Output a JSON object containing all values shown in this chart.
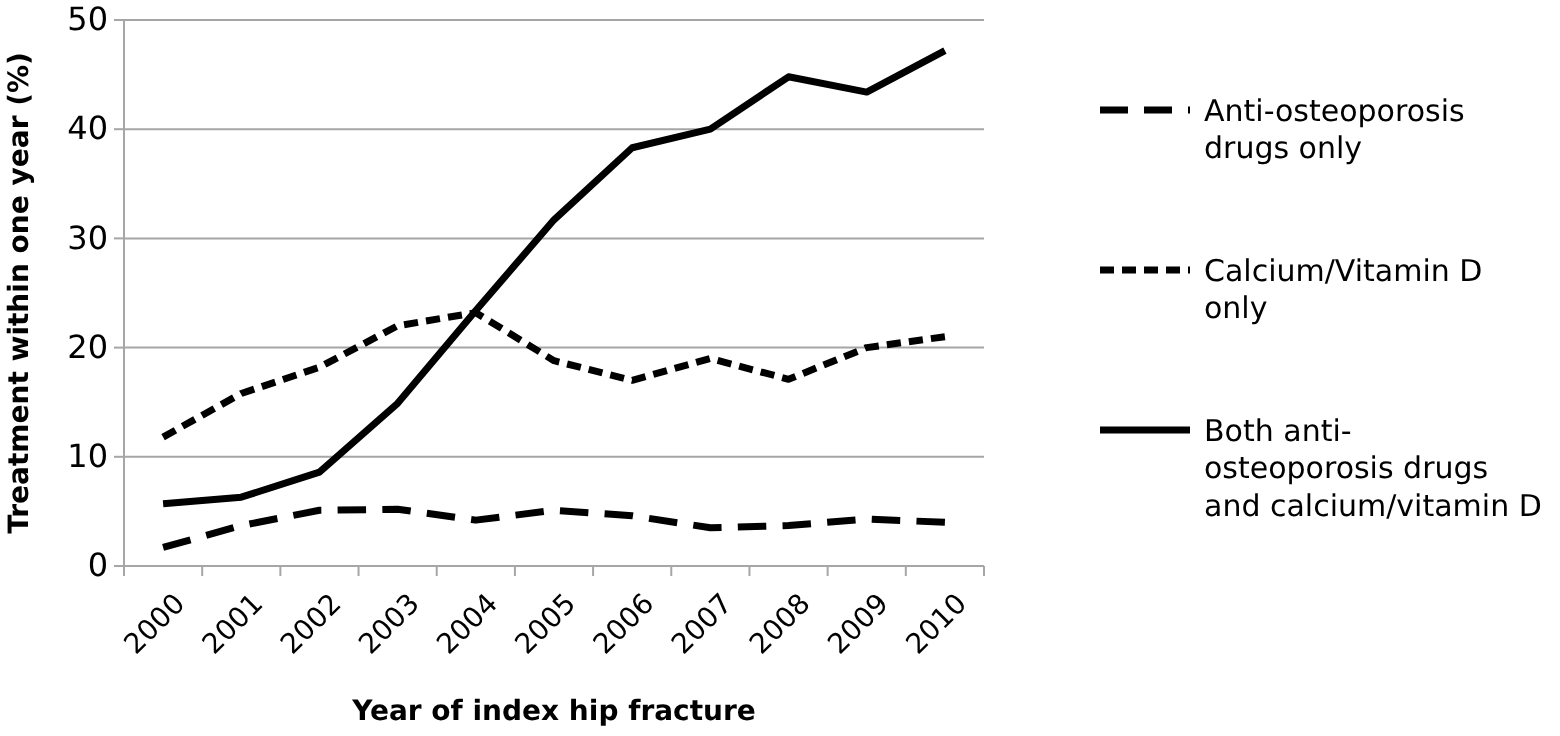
{
  "chart_data": {
    "type": "line",
    "xlabel": "Year of index hip fracture",
    "ylabel": "Treatment within one year (%)",
    "categories": [
      "2000",
      "2001",
      "2002",
      "2003",
      "2004",
      "2005",
      "2006",
      "2007",
      "2008",
      "2009",
      "2010"
    ],
    "series": [
      {
        "name": "Anti-osteoporosis drugs only",
        "color": "#000000",
        "line_style": "dashed",
        "values": [
          1.7,
          3.7,
          5.1,
          5.2,
          4.2,
          5.1,
          4.6,
          3.5,
          3.7,
          4.3,
          4.0
        ]
      },
      {
        "name": "Calcium/Vitamin D only",
        "color": "#000000",
        "line_style": "dotted",
        "values": [
          11.8,
          15.8,
          18.2,
          22.0,
          23.2,
          18.8,
          17.0,
          19.0,
          17.1,
          20.0,
          21.0
        ]
      },
      {
        "name": "Both anti-osteoporosis drugs and calcium/vitamin D",
        "color": "#000000",
        "line_style": "solid",
        "values": [
          5.7,
          6.3,
          8.6,
          14.9,
          23.4,
          31.7,
          38.3,
          40.0,
          44.8,
          43.4,
          47.2
        ]
      }
    ],
    "ylim": [
      0,
      50
    ],
    "yticks": [
      0,
      10,
      20,
      30,
      40,
      50
    ],
    "grid": "y",
    "legend": "right",
    "marker": "none"
  }
}
